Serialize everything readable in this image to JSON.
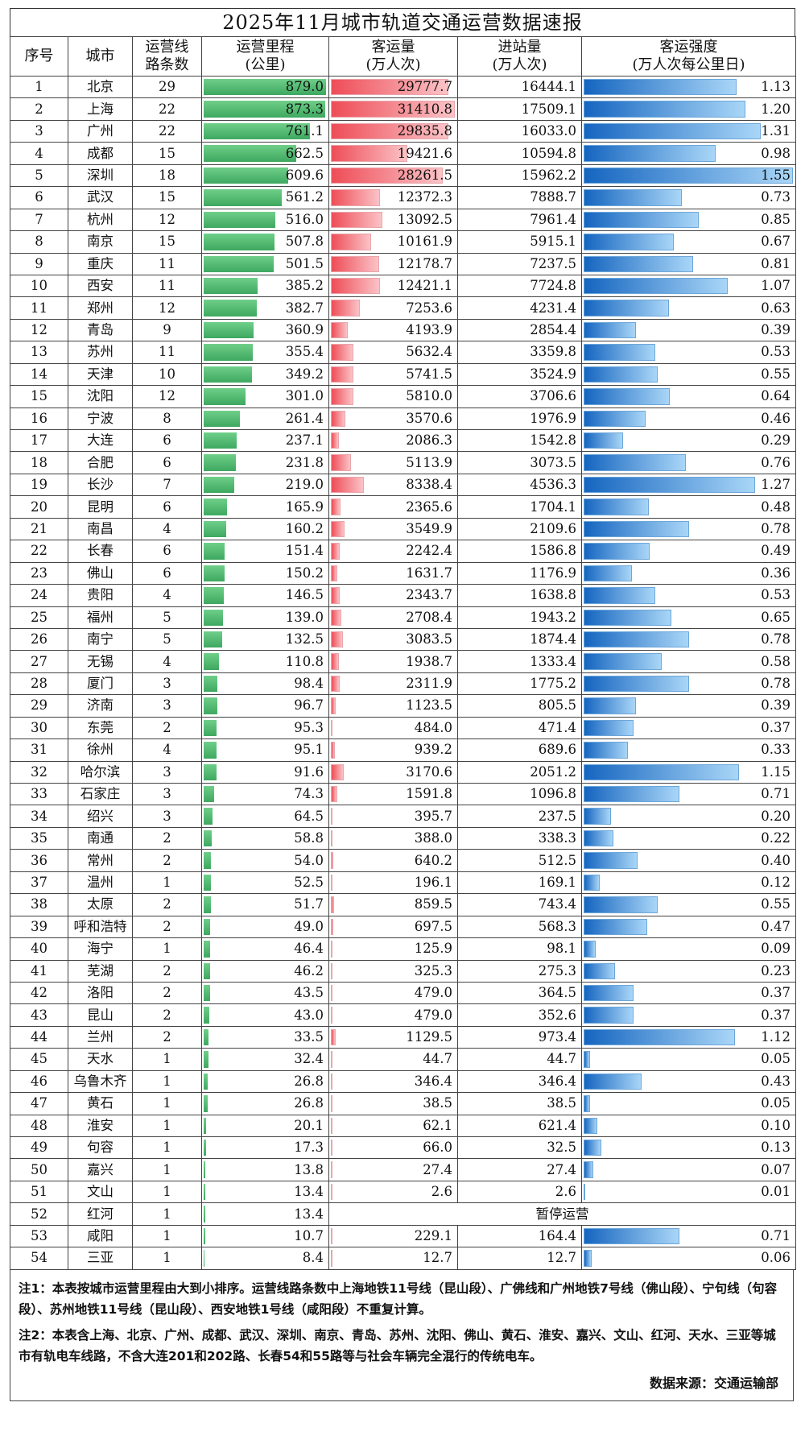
{
  "title": "2025年11月城市轨道交通运营数据速报",
  "headers": {
    "no": "序号",
    "city": "城市",
    "lines": [
      "运营线",
      "路条数"
    ],
    "mileage": [
      "运营里程",
      "(公里)"
    ],
    "passengers": [
      "客运量",
      "(万人次)"
    ],
    "entries": [
      "进站量",
      "(万人次)"
    ],
    "intensity": [
      "客运强度",
      "(万人次每公里日)"
    ]
  },
  "colors": {
    "mileage_bar": "#4cb56c",
    "passenger_bar": "#ef5560",
    "intensity_bar": "#1e7bd6"
  },
  "rows": [
    {
      "no": "1",
      "city": "北京",
      "lines": "29",
      "mileage": "879.0",
      "passengers": "29777.7",
      "entries": "16444.1",
      "intensity": "1.13"
    },
    {
      "no": "2",
      "city": "上海",
      "lines": "22",
      "mileage": "873.3",
      "passengers": "31410.8",
      "entries": "17509.1",
      "intensity": "1.20"
    },
    {
      "no": "3",
      "city": "广州",
      "lines": "22",
      "mileage": "761.1",
      "passengers": "29835.8",
      "entries": "16033.0",
      "intensity": "1.31"
    },
    {
      "no": "4",
      "city": "成都",
      "lines": "15",
      "mileage": "662.5",
      "passengers": "19421.6",
      "entries": "10594.8",
      "intensity": "0.98"
    },
    {
      "no": "5",
      "city": "深圳",
      "lines": "18",
      "mileage": "609.6",
      "passengers": "28261.5",
      "entries": "15962.2",
      "intensity": "1.55"
    },
    {
      "no": "6",
      "city": "武汉",
      "lines": "15",
      "mileage": "561.2",
      "passengers": "12372.3",
      "entries": "7888.7",
      "intensity": "0.73"
    },
    {
      "no": "7",
      "city": "杭州",
      "lines": "12",
      "mileage": "516.0",
      "passengers": "13092.5",
      "entries": "7961.4",
      "intensity": "0.85"
    },
    {
      "no": "8",
      "city": "南京",
      "lines": "15",
      "mileage": "507.8",
      "passengers": "10161.9",
      "entries": "5915.1",
      "intensity": "0.67"
    },
    {
      "no": "9",
      "city": "重庆",
      "lines": "11",
      "mileage": "501.5",
      "passengers": "12178.7",
      "entries": "7237.5",
      "intensity": "0.81"
    },
    {
      "no": "10",
      "city": "西安",
      "lines": "11",
      "mileage": "385.2",
      "passengers": "12421.1",
      "entries": "7724.8",
      "intensity": "1.07"
    },
    {
      "no": "11",
      "city": "郑州",
      "lines": "12",
      "mileage": "382.7",
      "passengers": "7253.6",
      "entries": "4231.4",
      "intensity": "0.63"
    },
    {
      "no": "12",
      "city": "青岛",
      "lines": "9",
      "mileage": "360.9",
      "passengers": "4193.9",
      "entries": "2854.4",
      "intensity": "0.39"
    },
    {
      "no": "13",
      "city": "苏州",
      "lines": "11",
      "mileage": "355.4",
      "passengers": "5632.4",
      "entries": "3359.8",
      "intensity": "0.53"
    },
    {
      "no": "14",
      "city": "天津",
      "lines": "10",
      "mileage": "349.2",
      "passengers": "5741.5",
      "entries": "3524.9",
      "intensity": "0.55"
    },
    {
      "no": "15",
      "city": "沈阳",
      "lines": "12",
      "mileage": "301.0",
      "passengers": "5810.0",
      "entries": "3706.6",
      "intensity": "0.64"
    },
    {
      "no": "16",
      "city": "宁波",
      "lines": "8",
      "mileage": "261.4",
      "passengers": "3570.6",
      "entries": "1976.9",
      "intensity": "0.46"
    },
    {
      "no": "17",
      "city": "大连",
      "lines": "6",
      "mileage": "237.1",
      "passengers": "2086.3",
      "entries": "1542.8",
      "intensity": "0.29"
    },
    {
      "no": "18",
      "city": "合肥",
      "lines": "6",
      "mileage": "231.8",
      "passengers": "5113.9",
      "entries": "3073.5",
      "intensity": "0.76"
    },
    {
      "no": "19",
      "city": "长沙",
      "lines": "7",
      "mileage": "219.0",
      "passengers": "8338.4",
      "entries": "4536.3",
      "intensity": "1.27"
    },
    {
      "no": "20",
      "city": "昆明",
      "lines": "6",
      "mileage": "165.9",
      "passengers": "2365.6",
      "entries": "1704.1",
      "intensity": "0.48"
    },
    {
      "no": "21",
      "city": "南昌",
      "lines": "4",
      "mileage": "160.2",
      "passengers": "3549.9",
      "entries": "2109.6",
      "intensity": "0.78"
    },
    {
      "no": "22",
      "city": "长春",
      "lines": "6",
      "mileage": "151.4",
      "passengers": "2242.4",
      "entries": "1586.8",
      "intensity": "0.49"
    },
    {
      "no": "23",
      "city": "佛山",
      "lines": "6",
      "mileage": "150.2",
      "passengers": "1631.7",
      "entries": "1176.9",
      "intensity": "0.36"
    },
    {
      "no": "24",
      "city": "贵阳",
      "lines": "4",
      "mileage": "146.5",
      "passengers": "2343.7",
      "entries": "1638.8",
      "intensity": "0.53"
    },
    {
      "no": "25",
      "city": "福州",
      "lines": "5",
      "mileage": "139.0",
      "passengers": "2708.4",
      "entries": "1943.2",
      "intensity": "0.65"
    },
    {
      "no": "26",
      "city": "南宁",
      "lines": "5",
      "mileage": "132.5",
      "passengers": "3083.5",
      "entries": "1874.4",
      "intensity": "0.78"
    },
    {
      "no": "27",
      "city": "无锡",
      "lines": "4",
      "mileage": "110.8",
      "passengers": "1938.7",
      "entries": "1333.4",
      "intensity": "0.58"
    },
    {
      "no": "28",
      "city": "厦门",
      "lines": "3",
      "mileage": "98.4",
      "passengers": "2311.9",
      "entries": "1775.2",
      "intensity": "0.78"
    },
    {
      "no": "29",
      "city": "济南",
      "lines": "3",
      "mileage": "96.7",
      "passengers": "1123.5",
      "entries": "805.5",
      "intensity": "0.39"
    },
    {
      "no": "30",
      "city": "东莞",
      "lines": "2",
      "mileage": "95.3",
      "passengers": "484.0",
      "entries": "471.4",
      "intensity": "0.37"
    },
    {
      "no": "31",
      "city": "徐州",
      "lines": "4",
      "mileage": "95.1",
      "passengers": "939.2",
      "entries": "689.6",
      "intensity": "0.33"
    },
    {
      "no": "32",
      "city": "哈尔滨",
      "lines": "3",
      "mileage": "91.6",
      "passengers": "3170.6",
      "entries": "2051.2",
      "intensity": "1.15"
    },
    {
      "no": "33",
      "city": "石家庄",
      "lines": "3",
      "mileage": "74.3",
      "passengers": "1591.8",
      "entries": "1096.8",
      "intensity": "0.71"
    },
    {
      "no": "34",
      "city": "绍兴",
      "lines": "3",
      "mileage": "64.5",
      "passengers": "395.7",
      "entries": "237.5",
      "intensity": "0.20"
    },
    {
      "no": "35",
      "city": "南通",
      "lines": "2",
      "mileage": "58.8",
      "passengers": "388.0",
      "entries": "338.3",
      "intensity": "0.22"
    },
    {
      "no": "36",
      "city": "常州",
      "lines": "2",
      "mileage": "54.0",
      "passengers": "640.2",
      "entries": "512.5",
      "intensity": "0.40"
    },
    {
      "no": "37",
      "city": "温州",
      "lines": "1",
      "mileage": "52.5",
      "passengers": "196.1",
      "entries": "169.1",
      "intensity": "0.12"
    },
    {
      "no": "38",
      "city": "太原",
      "lines": "2",
      "mileage": "51.7",
      "passengers": "859.5",
      "entries": "743.4",
      "intensity": "0.55"
    },
    {
      "no": "39",
      "city": "呼和浩特",
      "lines": "2",
      "mileage": "49.0",
      "passengers": "697.5",
      "entries": "568.3",
      "intensity": "0.47"
    },
    {
      "no": "40",
      "city": "海宁",
      "lines": "1",
      "mileage": "46.4",
      "passengers": "125.9",
      "entries": "98.1",
      "intensity": "0.09"
    },
    {
      "no": "41",
      "city": "芜湖",
      "lines": "2",
      "mileage": "46.2",
      "passengers": "325.3",
      "entries": "275.3",
      "intensity": "0.23"
    },
    {
      "no": "42",
      "city": "洛阳",
      "lines": "2",
      "mileage": "43.5",
      "passengers": "479.0",
      "entries": "364.5",
      "intensity": "0.37"
    },
    {
      "no": "43",
      "city": "昆山",
      "lines": "2",
      "mileage": "43.0",
      "passengers": "479.0",
      "entries": "352.6",
      "intensity": "0.37"
    },
    {
      "no": "44",
      "city": "兰州",
      "lines": "2",
      "mileage": "33.5",
      "passengers": "1129.5",
      "entries": "973.4",
      "intensity": "1.12"
    },
    {
      "no": "45",
      "city": "天水",
      "lines": "1",
      "mileage": "32.4",
      "passengers": "44.7",
      "entries": "44.7",
      "intensity": "0.05"
    },
    {
      "no": "46",
      "city": "乌鲁木齐",
      "lines": "1",
      "mileage": "26.8",
      "passengers": "346.4",
      "entries": "346.4",
      "intensity": "0.43"
    },
    {
      "no": "47",
      "city": "黄石",
      "lines": "1",
      "mileage": "26.8",
      "passengers": "38.5",
      "entries": "38.5",
      "intensity": "0.05"
    },
    {
      "no": "48",
      "city": "淮安",
      "lines": "1",
      "mileage": "20.1",
      "passengers": "62.1",
      "entries": "621.4",
      "intensity": "0.10"
    },
    {
      "no": "49",
      "city": "句容",
      "lines": "1",
      "mileage": "17.3",
      "passengers": "66.0",
      "entries": "32.5",
      "intensity": "0.13"
    },
    {
      "no": "50",
      "city": "嘉兴",
      "lines": "1",
      "mileage": "13.8",
      "passengers": "27.4",
      "entries": "27.4",
      "intensity": "0.07"
    },
    {
      "no": "51",
      "city": "文山",
      "lines": "1",
      "mileage": "13.4",
      "passengers": "2.6",
      "entries": "2.6",
      "intensity": "0.01"
    },
    {
      "no": "52",
      "city": "红河",
      "lines": "1",
      "mileage": "13.4",
      "suspended": "暂停运营"
    },
    {
      "no": "53",
      "city": "咸阳",
      "lines": "1",
      "mileage": "10.7",
      "passengers": "229.1",
      "entries": "164.4",
      "intensity": "0.71"
    },
    {
      "no": "54",
      "city": "三亚",
      "lines": "1",
      "mileage": "8.4",
      "passengers": "12.7",
      "entries": "12.7",
      "intensity": "0.06"
    }
  ],
  "notes": {
    "note1": "注1：本表按城市运营里程由大到小排序。运营线路条数中上海地铁11号线（昆山段）、广佛线和广州地铁7号线（佛山段）、宁句线（句容段）、苏州地铁11号线（昆山段）、西安地铁1号线（咸阳段）不重复计算。",
    "note2": "注2：本表含上海、北京、广州、成都、武汉、深圳、南京、青岛、苏州、沈阳、佛山、黄石、淮安、嘉兴、文山、红河、天水、三亚等城市有轨电车线路，不含大连201和202路、长春54和55路等与社会车辆完全混行的传统电车。",
    "source": "数据来源：交通运输部"
  }
}
